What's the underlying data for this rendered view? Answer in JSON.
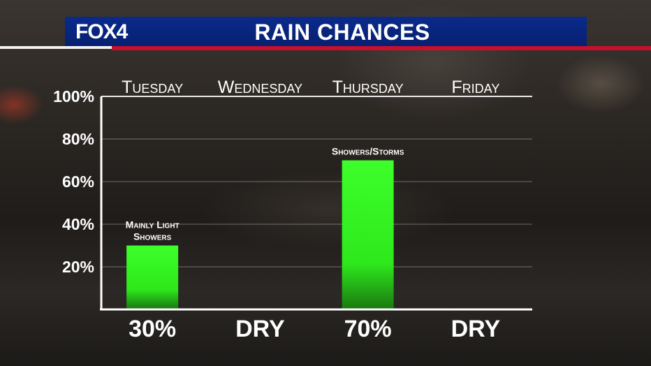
{
  "header": {
    "logo": "FOX4",
    "title": "RAIN CHANCES"
  },
  "colors": {
    "bar": "#33ff22",
    "title_bar": "#0a2a8c",
    "accent_red": "#c8102e"
  },
  "chart_data": {
    "type": "bar",
    "title": "RAIN CHANCES",
    "categories": [
      "Tuesday",
      "Wednesday",
      "Thursday",
      "Friday"
    ],
    "values": [
      30,
      0,
      70,
      0
    ],
    "value_labels": [
      "30%",
      "DRY",
      "70%",
      "DRY"
    ],
    "annotations": [
      [
        "Mainly Light",
        "Showers"
      ],
      [],
      [
        "Showers/Storms"
      ],
      []
    ],
    "yticks": [
      "20%",
      "40%",
      "60%",
      "80%",
      "100%"
    ],
    "ytick_values": [
      20,
      40,
      60,
      80,
      100
    ],
    "ylim": [
      0,
      100
    ],
    "grid": true,
    "xlabel": "",
    "ylabel": ""
  }
}
